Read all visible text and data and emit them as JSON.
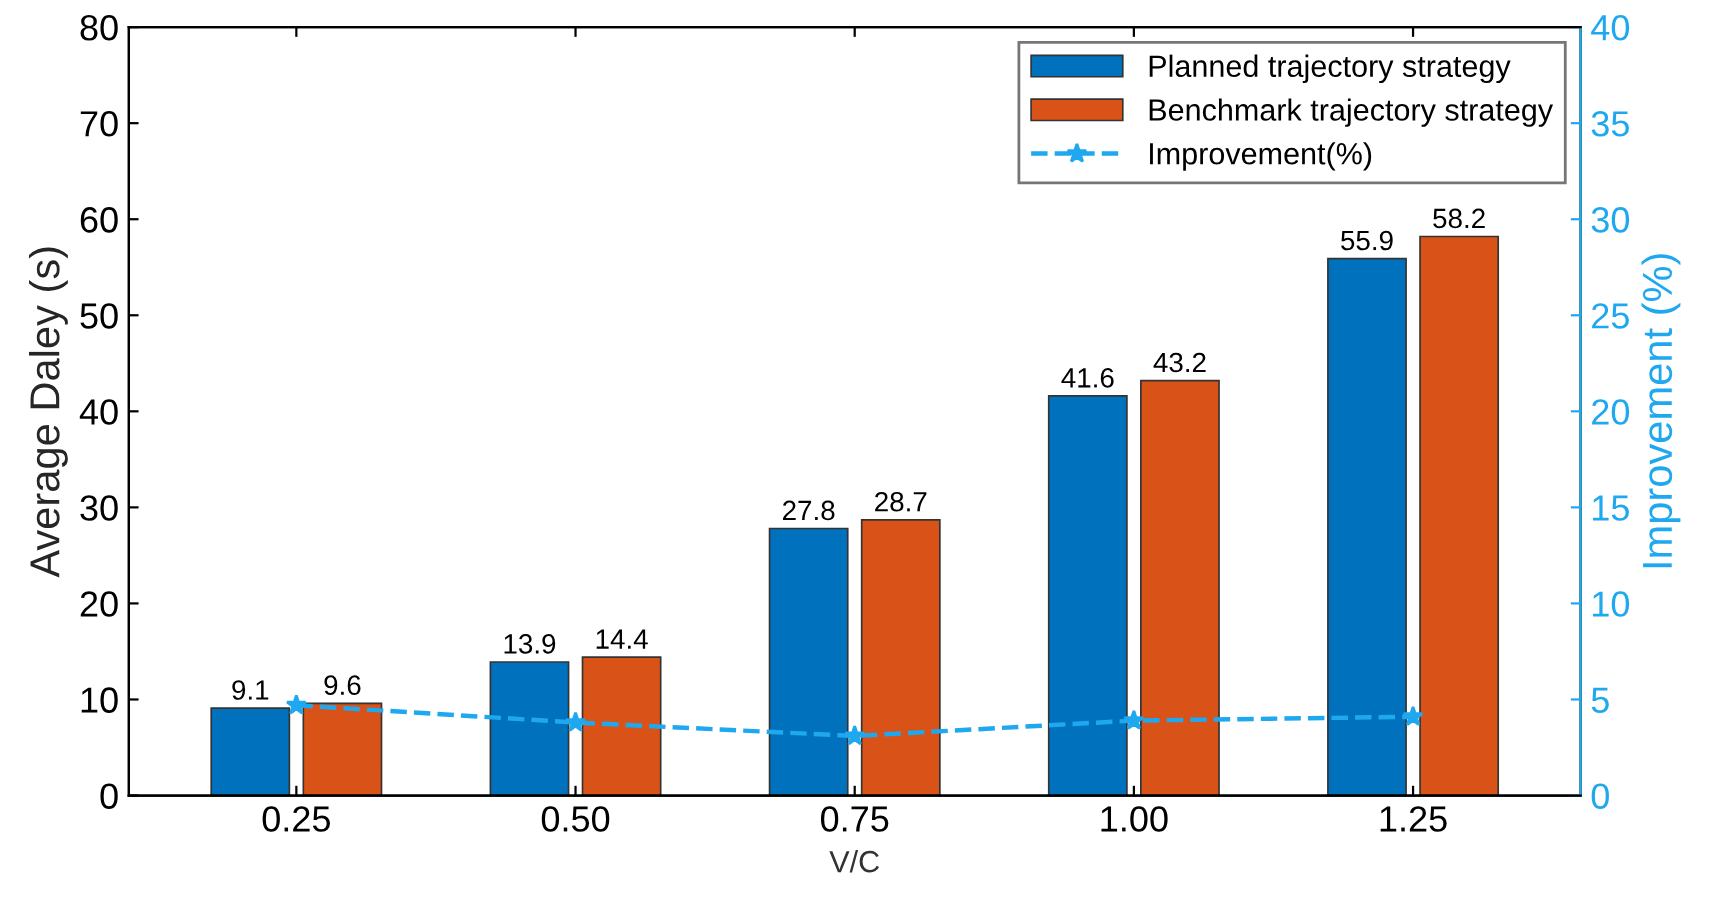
{
  "chart_data": {
    "type": "bar",
    "xlabel": "V/C",
    "ylabel": "Average Daley (s)",
    "y2label": "Improvement (%)",
    "categories": [
      "0.25",
      "0.50",
      "0.75",
      "1.00",
      "1.25"
    ],
    "series": [
      {
        "name": "Planned trajectory strategy",
        "color": "#0072bd",
        "values": [
          9.1,
          13.9,
          27.8,
          41.6,
          55.9
        ],
        "value_labels": [
          "9.1",
          "13.9",
          "27.8",
          "41.6",
          "55.9"
        ]
      },
      {
        "name": "Benchmark trajectory strategy",
        "color": "#d95319",
        "values": [
          9.6,
          14.4,
          28.7,
          43.2,
          58.2
        ],
        "value_labels": [
          "9.6",
          "14.4",
          "28.7",
          "43.2",
          "58.2"
        ]
      },
      {
        "name": "Improvement(%)",
        "type": "line",
        "axis": "y2",
        "color": "#1fa8f0",
        "values": [
          4.7,
          3.8,
          3.1,
          3.9,
          4.1
        ],
        "marker": "star",
        "line_style": "dashed"
      }
    ],
    "ylim": [
      0,
      80
    ],
    "yticks": [
      0,
      10,
      20,
      30,
      40,
      50,
      60,
      70,
      80
    ],
    "y2lim": [
      0,
      40
    ],
    "y2ticks": [
      0,
      5,
      10,
      15,
      20,
      25,
      30,
      35,
      40
    ],
    "legend": "top right",
    "grid": false
  }
}
